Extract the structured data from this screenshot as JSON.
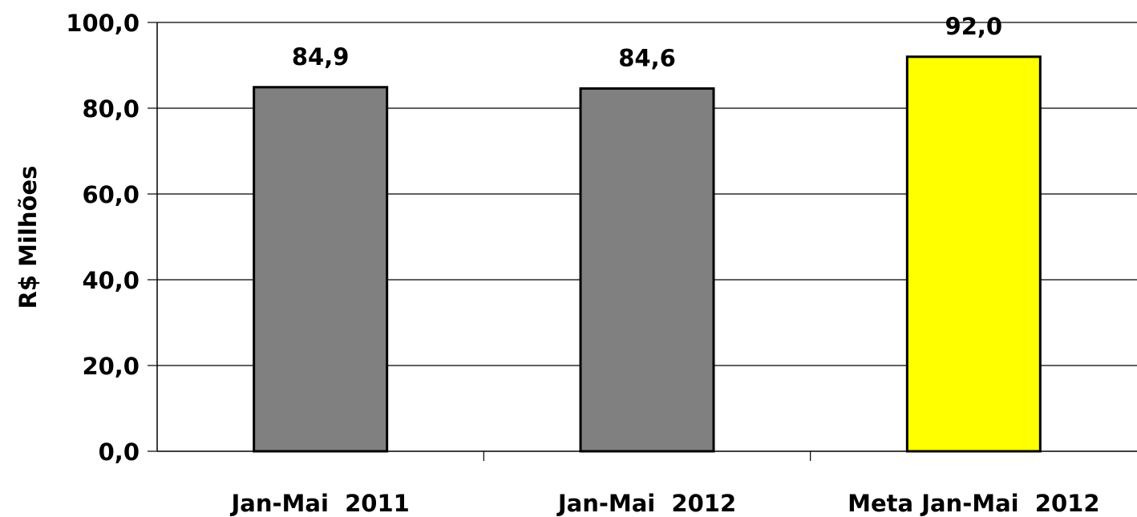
{
  "chart_data": {
    "type": "bar",
    "categories": [
      "Jan-Mai  2011",
      "Jan-Mai  2012",
      "Meta Jan-Mai  2012"
    ],
    "values": [
      84.9,
      84.6,
      92.0
    ],
    "value_labels": [
      "84,9",
      "84,6",
      "92,0"
    ],
    "bar_colors": [
      "#808080",
      "#808080",
      "#ffff00"
    ],
    "ylabel": "R$ Milhões",
    "xlabel": "",
    "title": "",
    "ylim": [
      0,
      100
    ],
    "yticks": [
      0,
      20,
      40,
      60,
      80,
      100
    ],
    "ytick_labels": [
      "0,0",
      "20,0",
      "40,0",
      "60,0",
      "80,0",
      "100,0"
    ],
    "grid": true,
    "legend": "none"
  }
}
